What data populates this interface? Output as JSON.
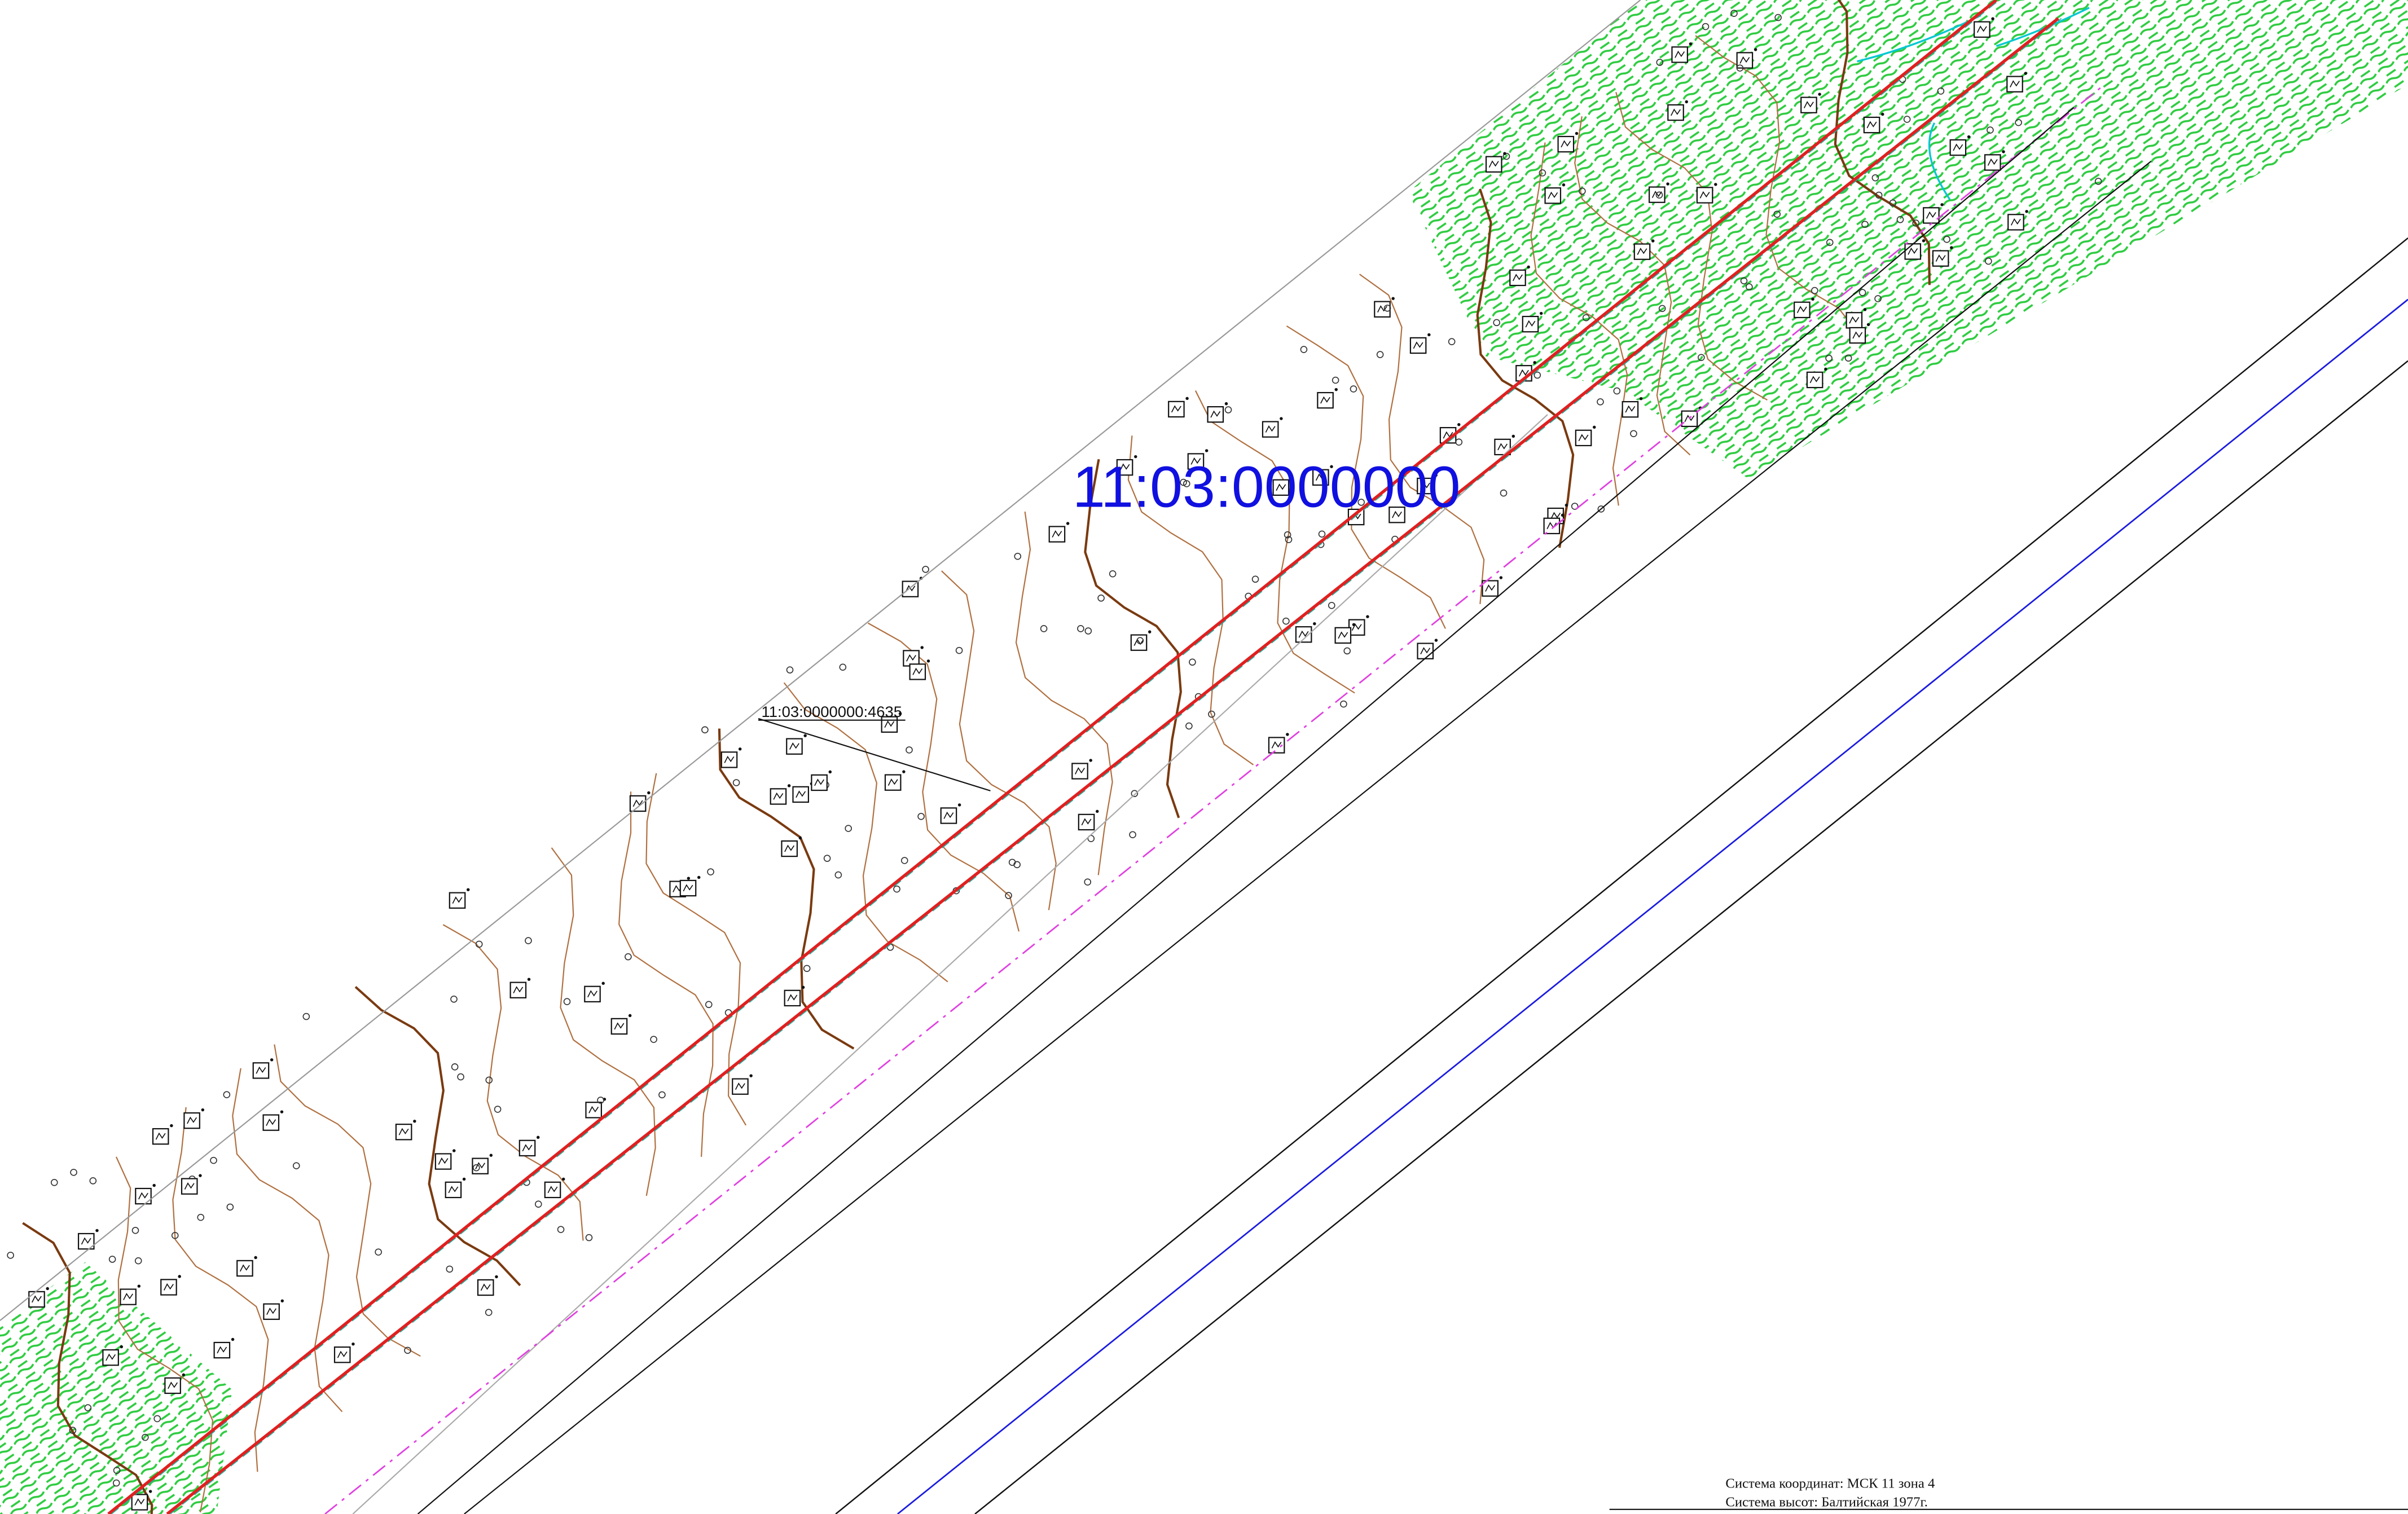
{
  "cadastral_number": "11:03:0000000",
  "parcel_label": "11:03:0000000:4635",
  "notes": [
    "Система координат: МСК 11 зона 4",
    "Система высот: Балтийская 1977г."
  ]
}
